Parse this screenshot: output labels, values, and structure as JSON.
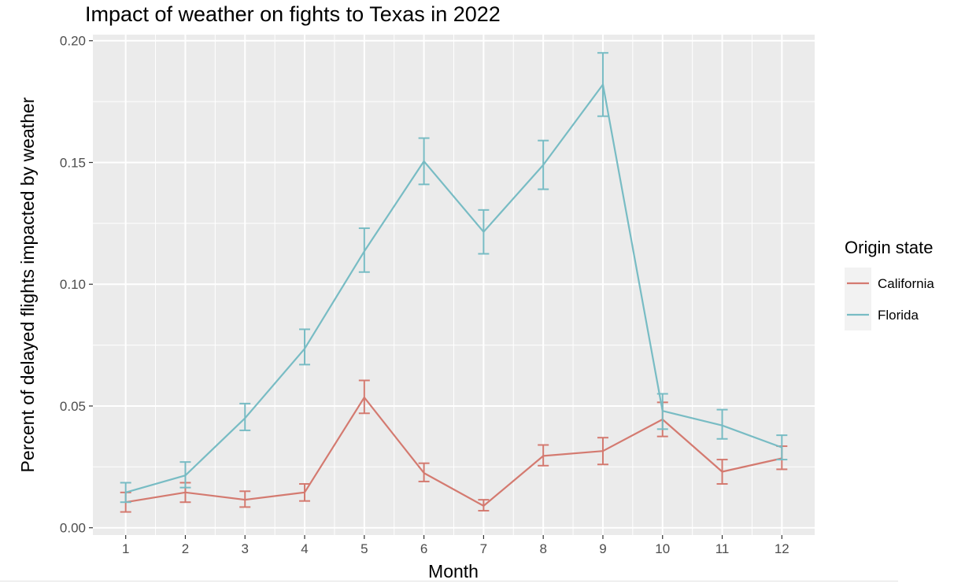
{
  "chart_data": {
    "type": "line",
    "title": "Impact of weather on fights to Texas in 2022",
    "xlabel": "Month",
    "ylabel": "Percent of delayed flights impacted by weather",
    "x": [
      1,
      2,
      3,
      4,
      5,
      6,
      7,
      8,
      9,
      10,
      11,
      12
    ],
    "xlim": [
      0.45,
      12.55
    ],
    "ylim": [
      -0.003,
      0.2025
    ],
    "yticks": [
      "0.00",
      "0.05",
      "0.10",
      "0.15",
      "0.20"
    ],
    "grid": true,
    "error_bars": true,
    "legend": {
      "title": "Origin state",
      "position": "right"
    },
    "panel_color": "#ebebeb",
    "grid_color": "#ffffff",
    "series": [
      {
        "name": "California",
        "color": "#d47a70",
        "values": [
          0.0105,
          0.0145,
          0.0115,
          0.0145,
          0.0535,
          0.0225,
          0.009,
          0.0295,
          0.0315,
          0.0445,
          0.023,
          0.0285
        ],
        "err_low": [
          0.0065,
          0.0105,
          0.0085,
          0.011,
          0.047,
          0.019,
          0.007,
          0.0255,
          0.026,
          0.0375,
          0.018,
          0.024
        ],
        "err_high": [
          0.0145,
          0.0185,
          0.015,
          0.018,
          0.0605,
          0.0265,
          0.0115,
          0.034,
          0.037,
          0.0515,
          0.028,
          0.0335
        ]
      },
      {
        "name": "Florida",
        "color": "#78bcc4",
        "values": [
          0.0145,
          0.0215,
          0.045,
          0.0735,
          0.1135,
          0.1505,
          0.1215,
          0.149,
          0.182,
          0.048,
          0.042,
          0.033
        ],
        "err_low": [
          0.0105,
          0.0165,
          0.04,
          0.067,
          0.105,
          0.141,
          0.1125,
          0.139,
          0.169,
          0.0405,
          0.0365,
          0.028
        ],
        "err_high": [
          0.0185,
          0.027,
          0.051,
          0.0815,
          0.123,
          0.16,
          0.1305,
          0.159,
          0.195,
          0.055,
          0.0485,
          0.038
        ]
      }
    ]
  }
}
